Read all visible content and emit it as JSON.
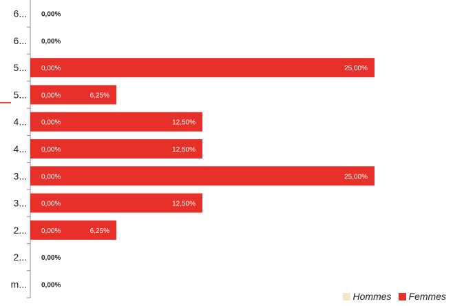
{
  "chart_data": {
    "type": "bar",
    "orientation": "horizontal",
    "stacked": true,
    "categories": [
      "6...",
      "6...",
      "5...",
      "5...",
      "4...",
      "4...",
      "3...",
      "3...",
      "2...",
      "2...",
      "m..."
    ],
    "series": [
      {
        "name": "Hommes",
        "color": "#f5e6c8",
        "values": [
          0,
          0,
          0,
          0,
          0,
          0,
          0,
          0,
          0,
          0,
          0
        ],
        "labels": [
          "0,00%",
          "0,00%",
          "0,00%",
          "0,00%",
          "0,00%",
          "0,00%",
          "0,00%",
          "0,00%",
          "0,00%",
          "0,00%",
          "0,00%"
        ]
      },
      {
        "name": "Femmes",
        "color": "#e8302a",
        "values": [
          0,
          0,
          25,
          6.25,
          12.5,
          12.5,
          25,
          12.5,
          6.25,
          0,
          0
        ],
        "labels": [
          "",
          "",
          "25,00%",
          "6,25%",
          "12,50%",
          "12,50%",
          "25,00%",
          "12,50%",
          "6,25%",
          "",
          ""
        ]
      }
    ],
    "xlim": [
      0,
      25
    ],
    "legend": {
      "position": "bottom-right"
    }
  },
  "legend": {
    "hommes_label": "Hommes",
    "femmes_label": "Femmes"
  }
}
